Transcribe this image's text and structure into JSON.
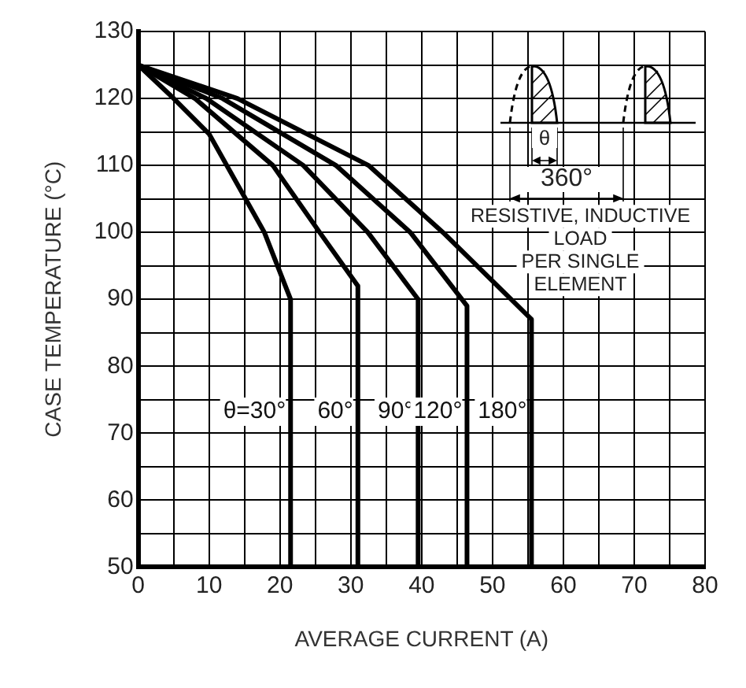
{
  "chart_data": {
    "type": "line",
    "xlabel": "AVERAGE CURRENT (A)",
    "ylabel": "CASE TEMPERATURE (°C)",
    "series": [
      {
        "name": "θ=30°",
        "color": "#000000",
        "x": [
          0,
          5,
          10,
          17.8,
          21.5,
          21.5
        ],
        "values": [
          125,
          120,
          114.7,
          100,
          90,
          50
        ]
      },
      {
        "name": "60°",
        "color": "#000000",
        "x": [
          0,
          8,
          19,
          25.6,
          31,
          31
        ],
        "values": [
          125,
          120,
          110,
          100,
          92,
          50
        ]
      },
      {
        "name": "90°",
        "color": "#000000",
        "x": [
          0,
          9.6,
          23.3,
          32.4,
          39.5,
          39.5
        ],
        "values": [
          125,
          120,
          110,
          100,
          90,
          50
        ]
      },
      {
        "name": "120°",
        "color": "#000000",
        "x": [
          0,
          11.9,
          27.9,
          38.4,
          46.4,
          46.4
        ],
        "values": [
          125,
          120,
          110,
          100,
          89,
          50
        ]
      },
      {
        "name": "180°",
        "color": "#000000",
        "x": [
          0,
          14,
          32.5,
          43,
          55.5,
          55.5
        ],
        "values": [
          125,
          120,
          110,
          100,
          87,
          50
        ]
      }
    ],
    "xlim": [
      0,
      80
    ],
    "ylim": [
      50,
      130
    ],
    "xticks": [
      0,
      {
        "value": 5,
        "label": null
      },
      10,
      {
        "value": 15,
        "label": null
      },
      20,
      {
        "value": 25,
        "label": null
      },
      30,
      {
        "value": 35,
        "label": null
      },
      40,
      {
        "value": 45,
        "label": null
      },
      50,
      {
        "value": 55,
        "label": null
      },
      60,
      {
        "value": 65,
        "label": null
      },
      70,
      {
        "value": 75,
        "label": null
      },
      80
    ],
    "yticks": [
      50,
      {
        "value": 55,
        "label": null
      },
      60,
      {
        "value": 65,
        "label": null
      },
      70,
      {
        "value": 75,
        "label": null
      },
      80,
      {
        "value": 85,
        "label": null
      },
      90,
      {
        "value": 95,
        "label": null
      },
      100,
      {
        "value": 105,
        "label": null
      },
      110,
      {
        "value": 115,
        "label": null
      },
      120,
      {
        "value": 125,
        "label": null
      },
      130
    ],
    "grid": true,
    "legend": false,
    "marker": "none",
    "line_style": "solid",
    "annotations": [
      "θ",
      "360°",
      "RESISTIVE, INDUCTIVE\nLOAD\nPER SINGLE\nELEMENT"
    ]
  }
}
